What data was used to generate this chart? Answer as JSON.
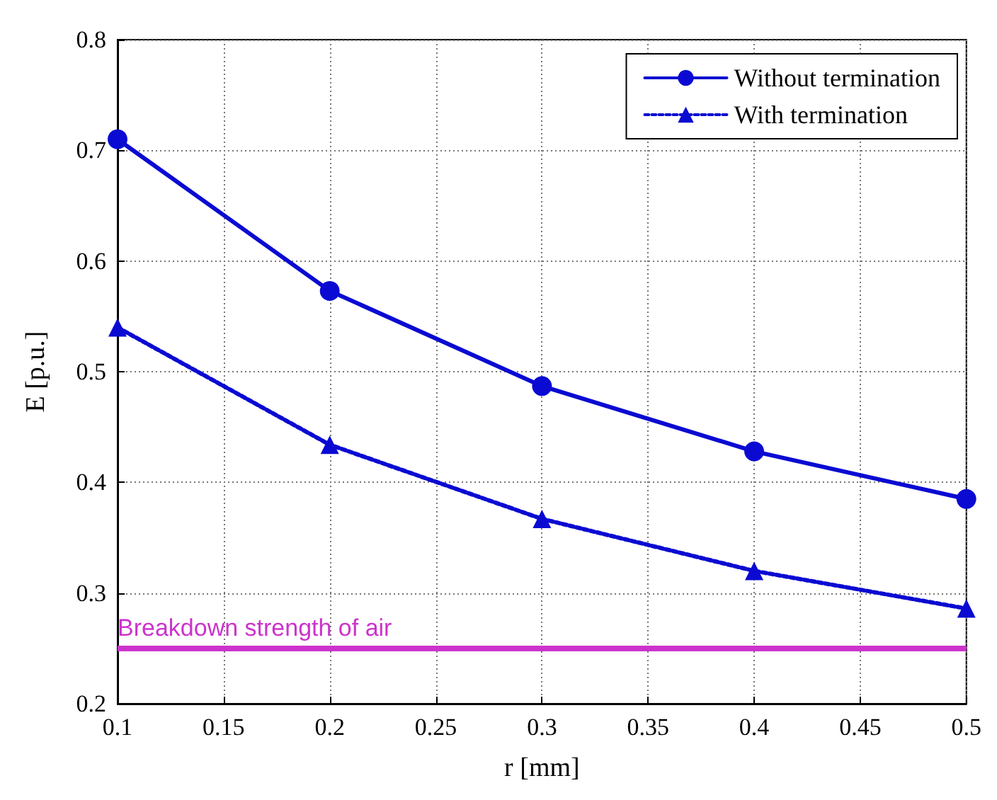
{
  "chart_data": {
    "type": "line",
    "xlabel": "r [mm]",
    "ylabel": "E [p.u.]",
    "x": [
      0.1,
      0.2,
      0.3,
      0.4,
      0.5
    ],
    "series": [
      {
        "name": "Without termination",
        "color": "#0a0ad2",
        "marker": "circle",
        "line_style": "solid",
        "values": [
          0.71,
          0.573,
          0.487,
          0.428,
          0.385
        ]
      },
      {
        "name": "With termination",
        "color": "#0a0ad2",
        "marker": "triangle",
        "line_style": "dotted",
        "values": [
          0.54,
          0.434,
          0.367,
          0.32,
          0.286
        ]
      }
    ],
    "xlim": [
      0.1,
      0.5
    ],
    "xticks": [
      0.1,
      0.15,
      0.2,
      0.25,
      0.3,
      0.35,
      0.4,
      0.45,
      0.5
    ],
    "ylim": [
      0.2,
      0.8
    ],
    "yticks": [
      0.2,
      0.3,
      0.4,
      0.5,
      0.6,
      0.7,
      0.8
    ],
    "ref_lines": [
      {
        "axis": "y",
        "value": 0.25,
        "label": "Breakdown strength of air",
        "color": "#cc33cc"
      }
    ],
    "grid": true,
    "legend": "top right"
  }
}
